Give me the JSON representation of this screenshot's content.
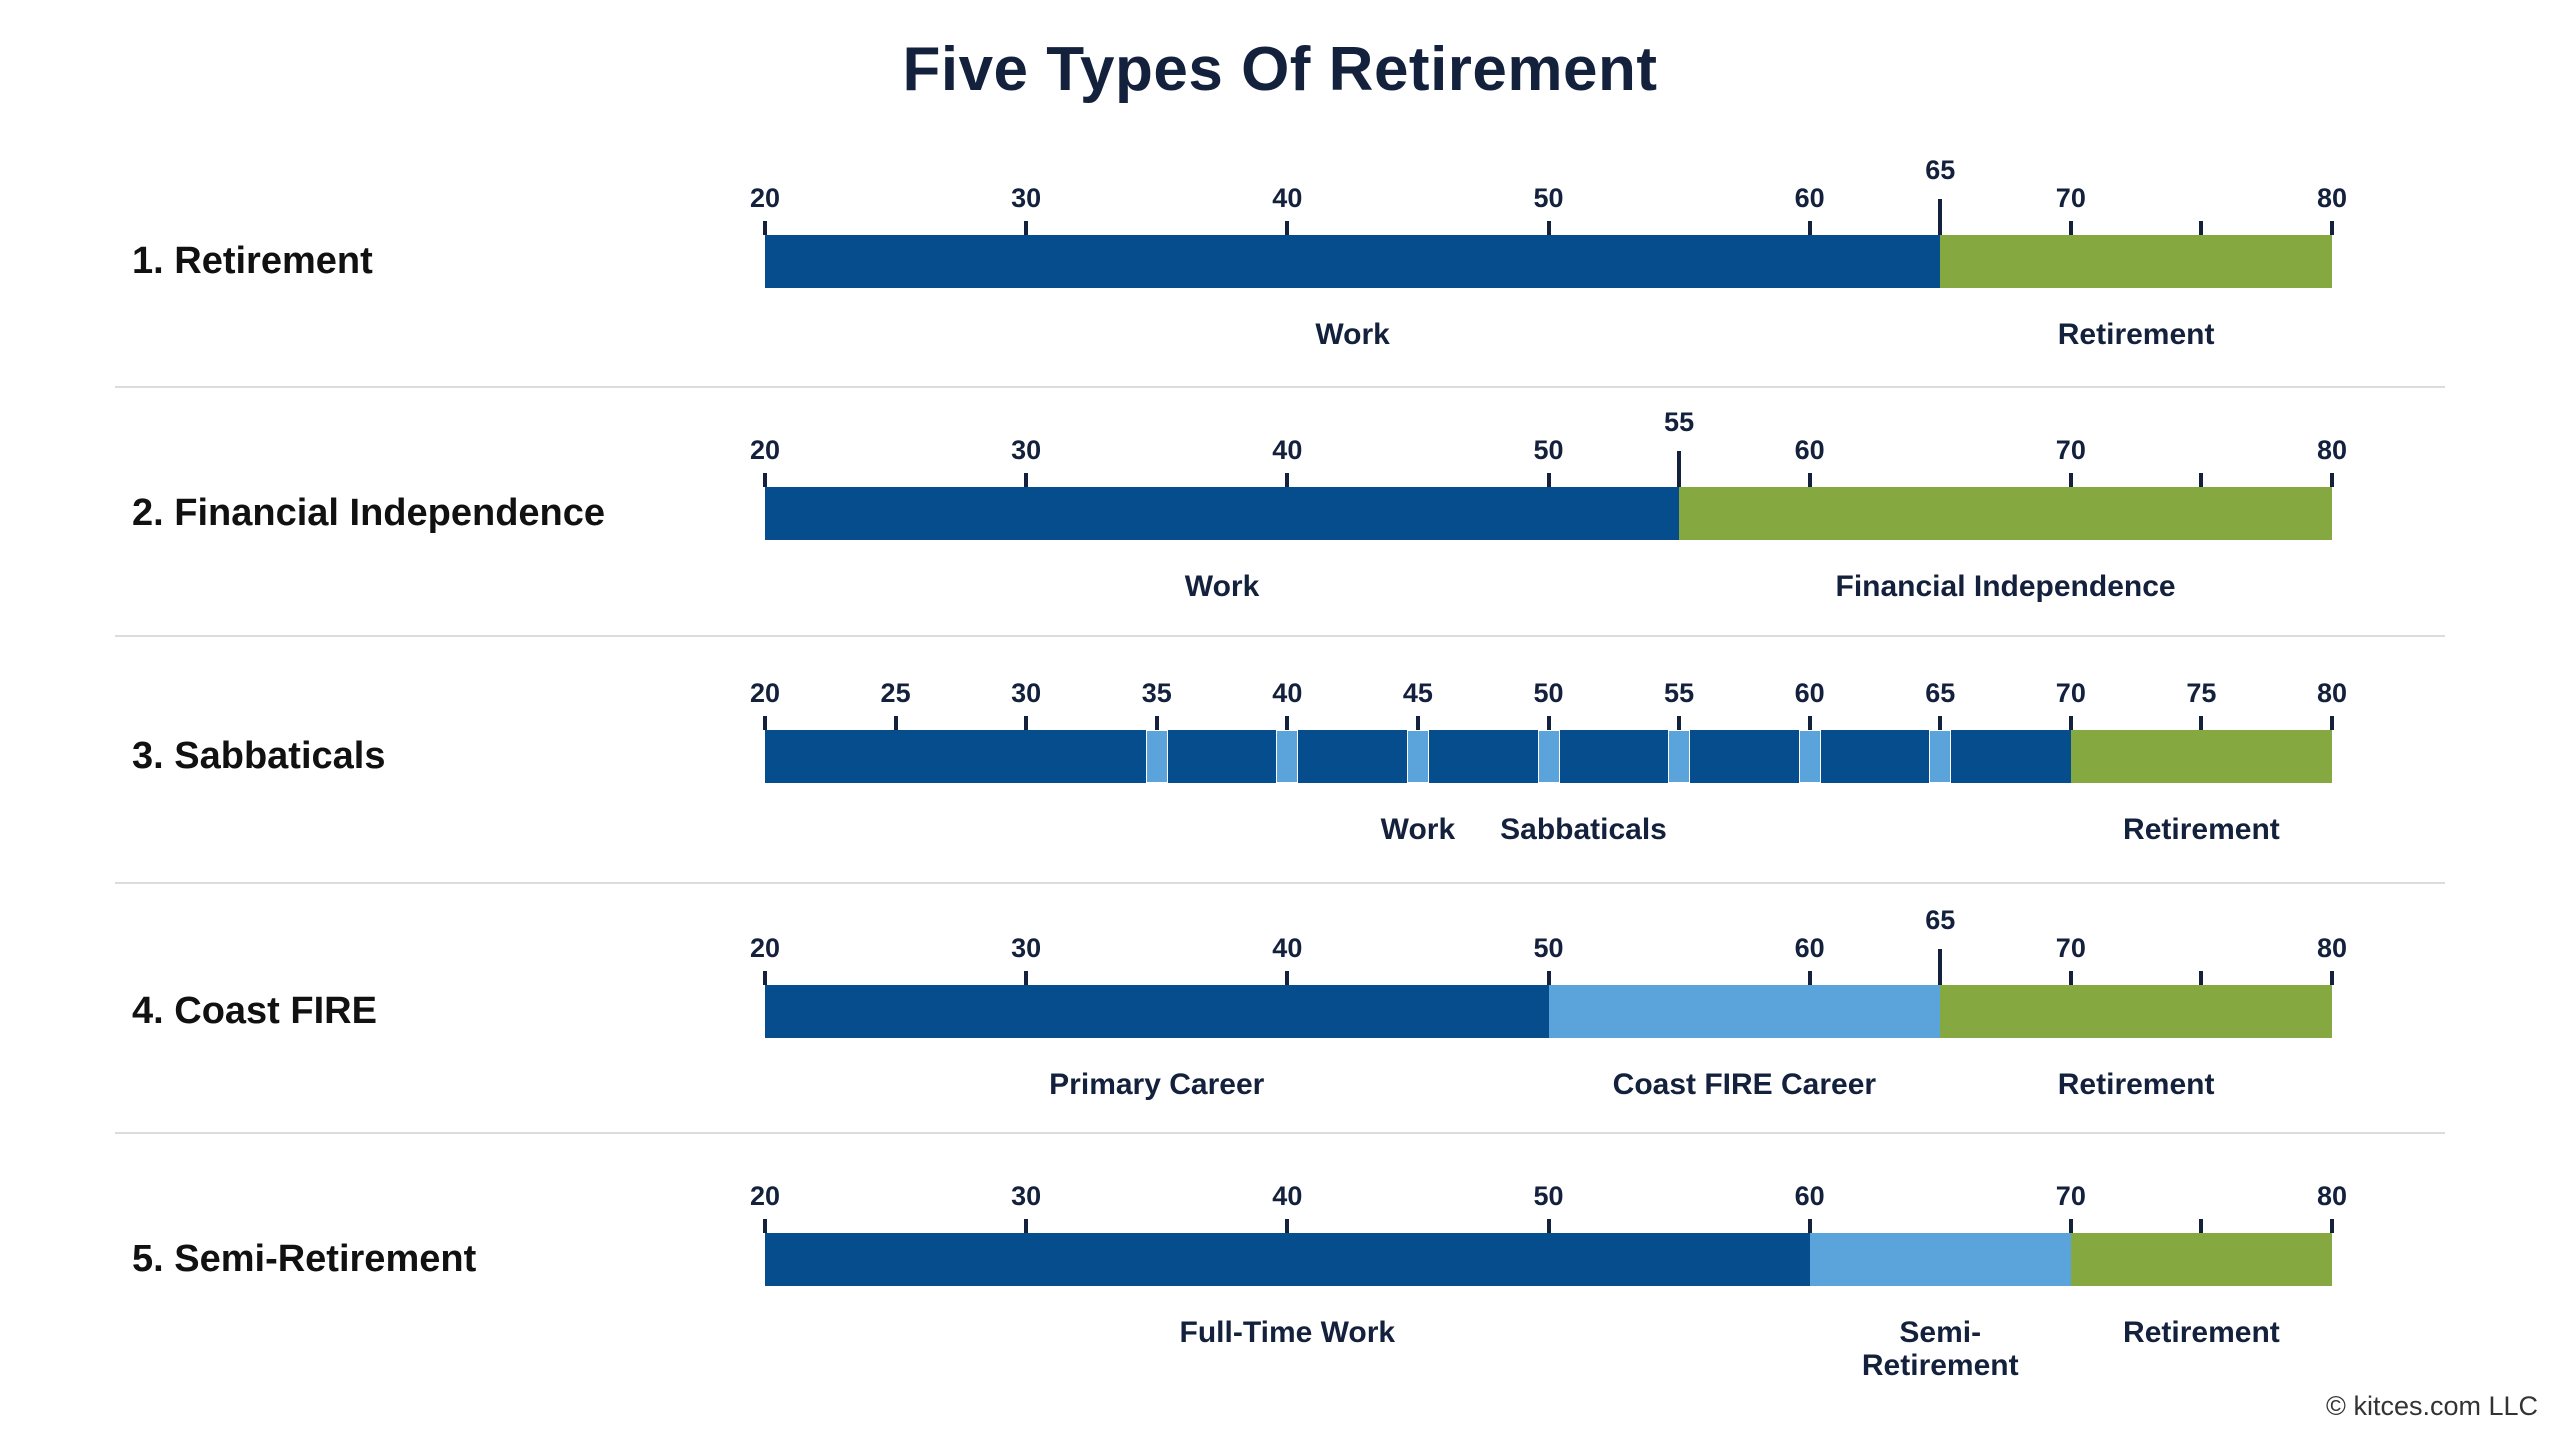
{
  "title": "Five Types Of Retirement",
  "copyright": "© kitces.com LLC",
  "colors": {
    "work": "#054d8c",
    "light": "#5ba3db",
    "retirement": "#85a840",
    "text": "#14213d"
  },
  "rows": [
    {
      "label": "1. Retirement",
      "ticks": [
        20,
        30,
        40,
        50,
        60,
        70,
        80
      ],
      "minor_ticks": [
        75
      ],
      "marker": 65,
      "segments": [
        {
          "from": 20,
          "to": 65,
          "color": "work",
          "label": "Work"
        },
        {
          "from": 65,
          "to": 80,
          "color": "retirement",
          "label": "Retirement"
        }
      ]
    },
    {
      "label": "2. Financial Independence",
      "ticks": [
        20,
        30,
        40,
        50,
        60,
        70,
        80
      ],
      "minor_ticks": [
        75
      ],
      "marker": 55,
      "segments": [
        {
          "from": 20,
          "to": 55,
          "color": "work",
          "label": "Work"
        },
        {
          "from": 55,
          "to": 80,
          "color": "retirement",
          "label": "Financial Independence"
        }
      ]
    },
    {
      "label": "3. Sabbaticals",
      "ticks": [
        20,
        25,
        30,
        35,
        40,
        45,
        50,
        55,
        60,
        65,
        70,
        75,
        80
      ],
      "minor_ticks": [],
      "marker": null,
      "segments": [
        {
          "from": 20,
          "to": 70,
          "color": "work",
          "label": "Work"
        },
        {
          "from": 70,
          "to": 80,
          "color": "retirement",
          "label": "Retirement"
        }
      ],
      "sabbaticals": [
        35,
        40,
        45,
        50,
        55,
        60,
        65
      ],
      "sabbatical_label": "Sabbaticals"
    },
    {
      "label": "4. Coast FIRE",
      "ticks": [
        20,
        30,
        40,
        50,
        60,
        70,
        80
      ],
      "minor_ticks": [
        75
      ],
      "marker": 65,
      "segments": [
        {
          "from": 20,
          "to": 50,
          "color": "work",
          "label": "Primary Career"
        },
        {
          "from": 50,
          "to": 65,
          "color": "light",
          "label": "Coast FIRE Career"
        },
        {
          "from": 65,
          "to": 80,
          "color": "retirement",
          "label": "Retirement"
        }
      ]
    },
    {
      "label": "5. Semi-Retirement",
      "ticks": [
        20,
        30,
        40,
        50,
        60,
        70,
        80
      ],
      "minor_ticks": [
        75
      ],
      "marker": null,
      "segments": [
        {
          "from": 20,
          "to": 60,
          "color": "work",
          "label": "Full-Time Work"
        },
        {
          "from": 60,
          "to": 70,
          "color": "light",
          "label": "Semi-\nRetirement"
        },
        {
          "from": 70,
          "to": 80,
          "color": "retirement",
          "label": "Retirement"
        }
      ]
    }
  ]
}
